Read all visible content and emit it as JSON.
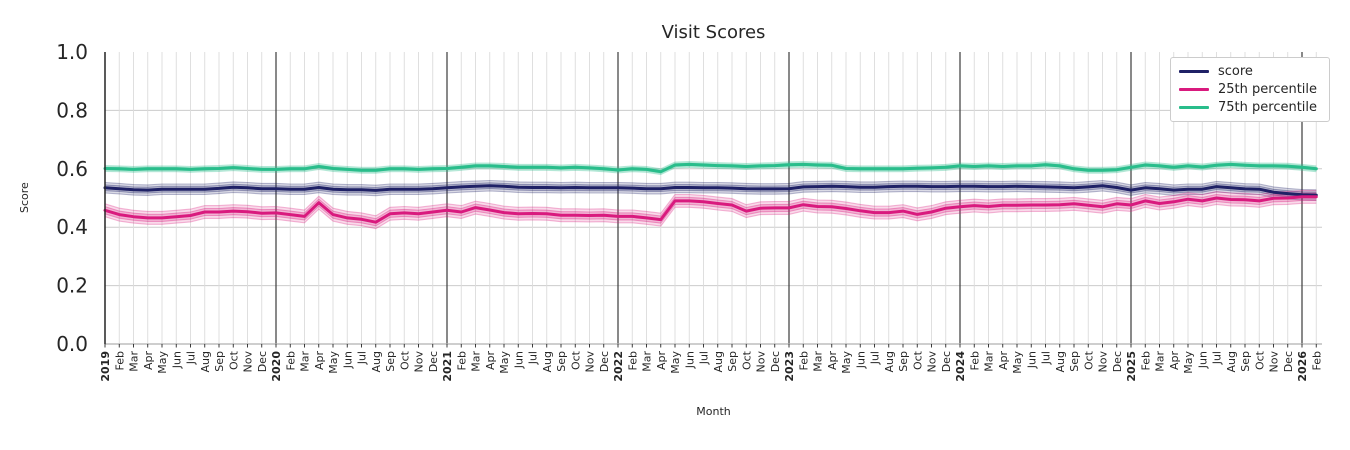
{
  "chart_data": {
    "type": "line",
    "title": "Visit Scores",
    "xlabel": "Month",
    "ylabel": "Score",
    "ylim": [
      0.0,
      1.0
    ],
    "ytick_labels": [
      "0.0",
      "0.2",
      "0.4",
      "0.6",
      "0.8",
      "1.0"
    ],
    "grid": true,
    "legend_position": "upper right",
    "x_tick_labels": [
      "2019",
      "Feb",
      "Mar",
      "Apr",
      "May",
      "Jun",
      "Jul",
      "Aug",
      "Sep",
      "Oct",
      "Nov",
      "Dec",
      "2020",
      "Feb",
      "Mar",
      "Apr",
      "May",
      "Jun",
      "Jul",
      "Aug",
      "Sep",
      "Oct",
      "Nov",
      "Dec",
      "2021",
      "Feb",
      "Mar",
      "Apr",
      "May",
      "Jun",
      "Jul",
      "Aug",
      "Sep",
      "Oct",
      "Nov",
      "Dec",
      "2022",
      "Feb",
      "Mar",
      "Apr",
      "May",
      "Jun",
      "Jul",
      "Aug",
      "Sep",
      "Oct",
      "Nov",
      "Dec",
      "2023",
      "Feb",
      "Mar",
      "Apr",
      "May",
      "Jun",
      "Jul",
      "Aug",
      "Sep",
      "Oct",
      "Nov",
      "Dec",
      "2024",
      "Feb",
      "Mar",
      "Apr",
      "May",
      "Jun",
      "Jul",
      "Aug",
      "Sep",
      "Oct",
      "Nov",
      "Dec",
      "2025",
      "Feb",
      "Mar",
      "Apr",
      "May",
      "Jun",
      "Jul",
      "Aug",
      "Sep",
      "Oct",
      "Nov",
      "Dec",
      "2026",
      "Feb"
    ],
    "series": [
      {
        "name": "score",
        "color": "#1f2166",
        "band_half": 0.018,
        "values": [
          0.535,
          0.532,
          0.528,
          0.527,
          0.53,
          0.53,
          0.53,
          0.53,
          0.533,
          0.537,
          0.535,
          0.532,
          0.532,
          0.53,
          0.53,
          0.536,
          0.53,
          0.528,
          0.528,
          0.526,
          0.53,
          0.53,
          0.53,
          0.532,
          0.535,
          0.538,
          0.54,
          0.542,
          0.54,
          0.537,
          0.536,
          0.536,
          0.535,
          0.536,
          0.535,
          0.535,
          0.535,
          0.534,
          0.532,
          0.532,
          0.536,
          0.536,
          0.535,
          0.535,
          0.534,
          0.532,
          0.531,
          0.531,
          0.532,
          0.538,
          0.539,
          0.54,
          0.539,
          0.537,
          0.537,
          0.539,
          0.54,
          0.54,
          0.539,
          0.539,
          0.54,
          0.54,
          0.539,
          0.539,
          0.54,
          0.539,
          0.538,
          0.537,
          0.535,
          0.538,
          0.542,
          0.536,
          0.527,
          0.535,
          0.532,
          0.527,
          0.53,
          0.53,
          0.539,
          0.535,
          0.531,
          0.53,
          0.52,
          0.515,
          0.511,
          0.51
        ]
      },
      {
        "name": "25th percentile",
        "color": "#d91a7e",
        "band_half": 0.022,
        "values": [
          0.458,
          0.443,
          0.436,
          0.432,
          0.432,
          0.436,
          0.44,
          0.452,
          0.452,
          0.455,
          0.453,
          0.448,
          0.449,
          0.443,
          0.437,
          0.484,
          0.443,
          0.432,
          0.427,
          0.417,
          0.446,
          0.449,
          0.446,
          0.452,
          0.458,
          0.452,
          0.467,
          0.459,
          0.45,
          0.446,
          0.447,
          0.446,
          0.441,
          0.441,
          0.44,
          0.441,
          0.437,
          0.437,
          0.432,
          0.426,
          0.49,
          0.49,
          0.487,
          0.481,
          0.476,
          0.455,
          0.465,
          0.466,
          0.466,
          0.477,
          0.471,
          0.47,
          0.464,
          0.456,
          0.45,
          0.45,
          0.455,
          0.444,
          0.452,
          0.465,
          0.47,
          0.474,
          0.471,
          0.475,
          0.475,
          0.476,
          0.476,
          0.477,
          0.48,
          0.475,
          0.47,
          0.48,
          0.476,
          0.49,
          0.481,
          0.487,
          0.496,
          0.49,
          0.5,
          0.495,
          0.494,
          0.49,
          0.499,
          0.5,
          0.504,
          0.504
        ]
      },
      {
        "name": "75th percentile",
        "color": "#29bd8b",
        "band_half": 0.01,
        "values": [
          0.601,
          0.6,
          0.598,
          0.6,
          0.6,
          0.6,
          0.598,
          0.6,
          0.601,
          0.604,
          0.601,
          0.598,
          0.598,
          0.6,
          0.6,
          0.608,
          0.601,
          0.598,
          0.595,
          0.595,
          0.6,
          0.6,
          0.598,
          0.6,
          0.601,
          0.605,
          0.61,
          0.61,
          0.608,
          0.605,
          0.605,
          0.605,
          0.603,
          0.605,
          0.603,
          0.6,
          0.596,
          0.6,
          0.598,
          0.59,
          0.613,
          0.615,
          0.613,
          0.611,
          0.61,
          0.608,
          0.61,
          0.611,
          0.614,
          0.615,
          0.613,
          0.612,
          0.601,
          0.6,
          0.6,
          0.6,
          0.6,
          0.602,
          0.603,
          0.605,
          0.61,
          0.608,
          0.61,
          0.608,
          0.61,
          0.61,
          0.614,
          0.61,
          0.6,
          0.595,
          0.595,
          0.597,
          0.605,
          0.613,
          0.61,
          0.605,
          0.61,
          0.606,
          0.612,
          0.615,
          0.612,
          0.61,
          0.61,
          0.609,
          0.605,
          0.6
        ]
      }
    ]
  }
}
